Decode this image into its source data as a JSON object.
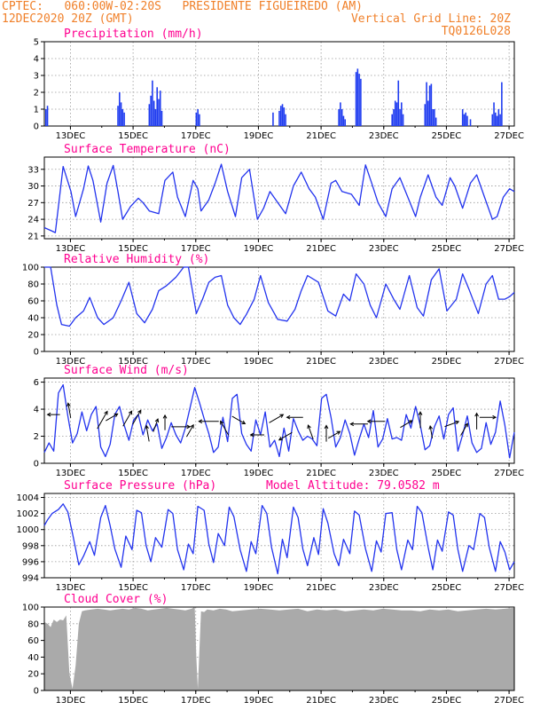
{
  "header": {
    "line1": "CPTEC:   060:00W-02:20S   PRESIDENTE FIGUEIREDO (AM)",
    "date": "12DEC2020 20Z (GMT)",
    "vgrid": "Vertical Grid Line: 20Z",
    "code": "TQ0126L028",
    "color": "#f0802a"
  },
  "colors": {
    "line": "#2233ee",
    "bar": "#1f3cf0",
    "cloud": "#aaaaaa",
    "title": "#ff0090",
    "arrow": "#000000"
  },
  "x_range": {
    "start": "12DEC 20Z",
    "end": "27DEC 20Z",
    "x_min": 0,
    "x_max": 15,
    "unit": "days"
  },
  "x_ticks": [
    {
      "x": 0.833,
      "label": "13DEC"
    },
    {
      "x": 2.833,
      "label": "15DEC"
    },
    {
      "x": 4.833,
      "label": "17DEC"
    },
    {
      "x": 6.833,
      "label": "19DEC"
    },
    {
      "x": 8.833,
      "label": "21DEC"
    },
    {
      "x": 10.833,
      "label": "23DEC"
    },
    {
      "x": 12.833,
      "label": "25DEC"
    },
    {
      "x": 14.833,
      "label": "27DEC"
    }
  ],
  "chart_data": [
    {
      "id": "precip",
      "type": "bar",
      "title": "Precipitation (mm/h)",
      "ylim": [
        0,
        5
      ],
      "yticks": [
        0,
        1,
        2,
        3,
        4,
        5
      ],
      "x": [
        0.05,
        0.1,
        2.35,
        2.4,
        2.45,
        2.5,
        2.55,
        3.35,
        3.4,
        3.45,
        3.5,
        3.55,
        3.6,
        3.65,
        3.7,
        3.75,
        4.85,
        4.9,
        4.95,
        7.3,
        7.5,
        7.55,
        7.6,
        7.65,
        7.7,
        9.4,
        9.45,
        9.5,
        9.55,
        9.6,
        9.95,
        10.0,
        10.05,
        10.1,
        11.1,
        11.15,
        11.2,
        11.25,
        11.3,
        11.35,
        11.4,
        11.45,
        12.15,
        12.2,
        12.25,
        12.3,
        12.35,
        12.4,
        12.45,
        12.5,
        13.35,
        13.4,
        13.45,
        13.5,
        13.6,
        14.3,
        14.35,
        14.4,
        14.45,
        14.5,
        14.55,
        14.6
      ],
      "values": [
        1.0,
        1.2,
        1.2,
        2.0,
        1.4,
        1.0,
        0.8,
        1.3,
        1.8,
        2.7,
        1.5,
        1.0,
        2.3,
        1.6,
        2.1,
        0.9,
        0.8,
        1.0,
        0.7,
        0.8,
        0.9,
        1.2,
        1.3,
        1.1,
        0.7,
        1.0,
        1.4,
        1.0,
        0.6,
        0.4,
        3.2,
        3.4,
        3.1,
        2.8,
        0.7,
        1.0,
        1.5,
        1.4,
        2.7,
        1.0,
        1.4,
        0.7,
        1.3,
        2.6,
        1.5,
        2.4,
        2.5,
        1.0,
        1.0,
        0.5,
        1.0,
        0.7,
        0.8,
        0.6,
        0.4,
        0.7,
        1.4,
        0.8,
        0.6,
        1.0,
        0.7,
        2.6
      ]
    },
    {
      "id": "temp",
      "type": "line",
      "title": "Surface Temperature (nC)",
      "ylim": [
        20.5,
        35.2
      ],
      "yticks": [
        21,
        24,
        27,
        30,
        33
      ],
      "x": [
        0,
        0.2,
        0.35,
        0.6,
        0.85,
        1.0,
        1.25,
        1.4,
        1.55,
        1.8,
        2.0,
        2.2,
        2.35,
        2.5,
        2.75,
        3.0,
        3.15,
        3.35,
        3.65,
        3.85,
        4.1,
        4.25,
        4.5,
        4.75,
        4.9,
        5.0,
        5.25,
        5.45,
        5.65,
        5.85,
        6.1,
        6.3,
        6.55,
        6.8,
        7.0,
        7.2,
        7.45,
        7.7,
        7.95,
        8.2,
        8.45,
        8.65,
        8.9,
        9.15,
        9.3,
        9.5,
        9.8,
        10.05,
        10.25,
        10.45,
        10.65,
        10.9,
        11.1,
        11.35,
        11.6,
        11.85,
        12.0,
        12.25,
        12.5,
        12.7,
        12.95,
        13.1,
        13.35,
        13.6,
        13.8,
        14.05,
        14.3,
        14.45,
        14.65,
        14.85,
        15.0
      ],
      "values": [
        22.5,
        22.0,
        21.6,
        33.5,
        29.0,
        24.5,
        29.5,
        33.6,
        31.0,
        23.5,
        30.5,
        33.7,
        29.0,
        24.0,
        26.3,
        27.8,
        27.0,
        25.5,
        25.0,
        31.0,
        32.5,
        28.0,
        24.5,
        31.0,
        29.5,
        25.5,
        27.5,
        30.5,
        33.9,
        29.0,
        24.5,
        31.5,
        33.0,
        24.0,
        26.0,
        29.0,
        27.0,
        25.0,
        30.0,
        32.5,
        29.5,
        28.0,
        24.0,
        30.5,
        31.0,
        29.0,
        28.5,
        26.5,
        33.8,
        30.5,
        27.0,
        24.5,
        29.5,
        31.5,
        28.0,
        24.5,
        28.0,
        32.0,
        28.0,
        26.5,
        31.5,
        30.0,
        26.0,
        30.5,
        32.0,
        28.0,
        24.0,
        24.5,
        28.0,
        29.5,
        29.0
      ]
    },
    {
      "id": "rh",
      "type": "line",
      "title": "Relative Humidity (%)",
      "ylim": [
        0,
        100
      ],
      "yticks": [
        0,
        20,
        40,
        60,
        80,
        100
      ],
      "x": [
        0,
        0.2,
        0.4,
        0.55,
        0.8,
        1.0,
        1.25,
        1.45,
        1.7,
        1.9,
        2.2,
        2.45,
        2.7,
        2.95,
        3.2,
        3.45,
        3.65,
        3.9,
        4.2,
        4.45,
        4.6,
        4.85,
        5.05,
        5.25,
        5.45,
        5.65,
        5.85,
        6.05,
        6.25,
        6.45,
        6.7,
        6.9,
        7.15,
        7.45,
        7.75,
        8.0,
        8.2,
        8.4,
        8.75,
        9.05,
        9.3,
        9.55,
        9.75,
        9.95,
        10.2,
        10.4,
        10.6,
        10.9,
        11.15,
        11.35,
        11.65,
        11.9,
        12.1,
        12.35,
        12.6,
        12.85,
        13.15,
        13.35,
        13.55,
        13.85,
        14.1,
        14.3,
        14.5,
        14.7,
        14.85,
        15.0
      ],
      "values": [
        100,
        100,
        55,
        32,
        30,
        40,
        48,
        64,
        40,
        32,
        40,
        60,
        82,
        45,
        34,
        50,
        72,
        78,
        88,
        100,
        100,
        45,
        62,
        82,
        88,
        90,
        55,
        40,
        32,
        44,
        62,
        90,
        58,
        38,
        36,
        50,
        72,
        90,
        82,
        48,
        42,
        68,
        60,
        92,
        80,
        55,
        40,
        80,
        62,
        50,
        90,
        52,
        42,
        85,
        98,
        48,
        62,
        92,
        74,
        45,
        80,
        90,
        62,
        62,
        65,
        70
      ]
    },
    {
      "id": "wind",
      "type": "line",
      "title": "Surface Wind (m/s)",
      "ylim": [
        0,
        6.3
      ],
      "yticks": [
        0,
        2,
        4,
        6
      ],
      "x": [
        0,
        0.15,
        0.3,
        0.45,
        0.6,
        0.75,
        0.9,
        1.05,
        1.2,
        1.35,
        1.5,
        1.65,
        1.8,
        1.95,
        2.1,
        2.25,
        2.4,
        2.55,
        2.7,
        2.85,
        3.0,
        3.15,
        3.3,
        3.45,
        3.6,
        3.75,
        3.9,
        4.05,
        4.2,
        4.35,
        4.5,
        4.65,
        4.8,
        4.95,
        5.1,
        5.25,
        5.4,
        5.55,
        5.7,
        5.85,
        6.0,
        6.15,
        6.3,
        6.45,
        6.6,
        6.75,
        6.9,
        7.05,
        7.2,
        7.35,
        7.5,
        7.65,
        7.8,
        7.95,
        8.1,
        8.25,
        8.4,
        8.55,
        8.7,
        8.85,
        9.0,
        9.15,
        9.3,
        9.45,
        9.6,
        9.75,
        9.9,
        10.05,
        10.2,
        10.35,
        10.5,
        10.65,
        10.8,
        10.95,
        11.1,
        11.25,
        11.4,
        11.55,
        11.7,
        11.85,
        12.0,
        12.15,
        12.3,
        12.45,
        12.6,
        12.75,
        12.9,
        13.05,
        13.2,
        13.35,
        13.5,
        13.65,
        13.8,
        13.95,
        14.1,
        14.25,
        14.4,
        14.55,
        14.7,
        14.85,
        15.0
      ],
      "values": [
        0.8,
        1.5,
        0.9,
        5.2,
        5.8,
        3.5,
        1.5,
        2.2,
        3.8,
        2.4,
        3.6,
        4.2,
        1.2,
        0.5,
        1.4,
        3.6,
        4.2,
        2.8,
        1.7,
        3.2,
        3.6,
        2.1,
        3.2,
        2.4,
        2.9,
        1.1,
        1.9,
        3.0,
        2.1,
        1.5,
        2.6,
        4.1,
        5.6,
        4.5,
        3.3,
        2.2,
        0.8,
        1.2,
        3.4,
        1.6,
        4.8,
        5.1,
        2.2,
        1.4,
        0.9,
        3.2,
        2.1,
        3.8,
        1.2,
        1.7,
        0.5,
        2.6,
        0.9,
        3.3,
        2.4,
        1.7,
        2.0,
        1.8,
        1.3,
        4.8,
        5.1,
        3.4,
        1.2,
        1.9,
        3.2,
        2.2,
        0.6,
        1.8,
        2.9,
        1.9,
        3.9,
        1.2,
        1.8,
        3.3,
        1.8,
        1.9,
        1.7,
        3.6,
        2.6,
        4.2,
        2.8,
        1.0,
        1.3,
        2.7,
        3.5,
        1.8,
        3.6,
        4.1,
        0.9,
        2.1,
        3.5,
        1.5,
        0.8,
        1.1,
        3.0,
        1.4,
        2.3,
        4.6,
        2.8,
        0.4,
        2.3
      ]
    },
    {
      "id": "wind_arrows",
      "type": "vector",
      "title": "Surface Wind direction arrows",
      "x": [
        0.3,
        0.8,
        1.85,
        2.15,
        2.65,
        2.95,
        3.3,
        3.55,
        3.85,
        4.35,
        4.65,
        5.25,
        5.75,
        6.2,
        6.8,
        7.4,
        7.7,
        8.0,
        8.5,
        9.0,
        9.25,
        10.05,
        10.6,
        11.55,
        12.0,
        12.35,
        13.0,
        13.4,
        13.8,
        14.15
      ],
      "y": [
        3.6,
        3.9,
        3.2,
        3.4,
        3.3,
        3.4,
        2.2,
        2.8,
        3.0,
        2.7,
        2.4,
        3.1,
        2.6,
        3.2,
        2.1,
        3.3,
        2.0,
        3.4,
        2.3,
        2.2,
        2.1,
        2.9,
        3.1,
        2.9,
        3.2,
        2.3,
        2.9,
        2.5,
        3.1,
        3.4
      ],
      "dir_deg": [
        180,
        100,
        60,
        30,
        60,
        60,
        100,
        70,
        90,
        0,
        60,
        180,
        120,
        330,
        180,
        30,
        210,
        180,
        110,
        90,
        30,
        180,
        180,
        30,
        90,
        100,
        20,
        60,
        90,
        0
      ],
      "speed": [
        1.0,
        1.2,
        1.6,
        1.1,
        1.4,
        1.3,
        1.3,
        1.1,
        1.2,
        1.5,
        1.1,
        1.6,
        1.3,
        1.2,
        1.1,
        1.3,
        1.2,
        1.3,
        1.2,
        1.3,
        1.1,
        1.4,
        1.4,
        1.1,
        1.3,
        1.0,
        1.2,
        1.1,
        1.3,
        1.3
      ]
    },
    {
      "id": "pressure",
      "type": "line",
      "title": "Surface Pressure (hPa)",
      "annotation": "Model Altitude: 79.0582 m",
      "ylim": [
        994,
        1004.5
      ],
      "yticks": [
        994,
        996,
        998,
        1000,
        1002,
        1004
      ],
      "x": [
        0,
        0.1,
        0.25,
        0.45,
        0.6,
        0.75,
        0.9,
        1.1,
        1.25,
        1.45,
        1.6,
        1.8,
        1.95,
        2.1,
        2.25,
        2.45,
        2.6,
        2.8,
        2.95,
        3.1,
        3.25,
        3.4,
        3.55,
        3.75,
        3.95,
        4.1,
        4.25,
        4.45,
        4.6,
        4.75,
        4.9,
        5.1,
        5.25,
        5.4,
        5.55,
        5.75,
        5.9,
        6.05,
        6.25,
        6.45,
        6.6,
        6.75,
        6.95,
        7.1,
        7.25,
        7.45,
        7.6,
        7.75,
        7.95,
        8.1,
        8.25,
        8.4,
        8.6,
        8.75,
        8.9,
        9.05,
        9.25,
        9.4,
        9.55,
        9.75,
        9.9,
        10.05,
        10.25,
        10.45,
        10.6,
        10.75,
        10.9,
        11.1,
        11.25,
        11.4,
        11.6,
        11.75,
        11.9,
        12.05,
        12.25,
        12.4,
        12.55,
        12.7,
        12.9,
        13.05,
        13.2,
        13.35,
        13.55,
        13.7,
        13.9,
        14.05,
        14.2,
        14.4,
        14.55,
        14.7,
        14.85,
        15.0
      ],
      "values": [
        1000.5,
        1001.2,
        1002.0,
        1002.5,
        1003.2,
        1002.2,
        999.5,
        995.6,
        996.7,
        998.5,
        996.8,
        1001.5,
        1003.0,
        1000.5,
        997.6,
        995.3,
        999.2,
        997.5,
        1002.4,
        1002.1,
        998.0,
        996.0,
        999.0,
        997.8,
        1002.5,
        1002.0,
        997.5,
        995.0,
        998.2,
        997.0,
        1002.9,
        1002.4,
        998.2,
        995.9,
        999.5,
        998.0,
        1002.8,
        1001.6,
        997.5,
        994.8,
        998.5,
        997.0,
        1003.0,
        1002.0,
        997.8,
        994.5,
        998.8,
        996.5,
        1002.8,
        1001.5,
        997.6,
        995.5,
        999.0,
        996.9,
        1002.6,
        1000.8,
        997.0,
        995.5,
        998.8,
        997.0,
        1002.3,
        1001.8,
        997.6,
        994.8,
        998.6,
        997.2,
        1002.0,
        1002.1,
        997.5,
        995.0,
        998.7,
        997.5,
        1002.9,
        1002.1,
        997.8,
        995.0,
        998.7,
        997.3,
        1002.2,
        1001.8,
        997.5,
        994.8,
        998.0,
        997.5,
        1002.0,
        1001.5,
        997.8,
        994.8,
        998.5,
        997.2,
        995.0,
        996.0
      ]
    },
    {
      "id": "cloud",
      "type": "area",
      "title": "Cloud Cover (%)",
      "ylim": [
        0,
        100
      ],
      "yticks": [
        0,
        20,
        40,
        60,
        80,
        100
      ],
      "x": [
        0,
        0.1,
        0.2,
        0.3,
        0.4,
        0.5,
        0.6,
        0.7,
        0.8,
        0.9,
        1.0,
        1.1,
        1.2,
        1.3,
        1.5,
        1.7,
        1.9,
        2.1,
        2.3,
        2.5,
        2.7,
        2.9,
        3.1,
        3.3,
        3.5,
        3.7,
        3.9,
        4.1,
        4.3,
        4.5,
        4.7,
        4.8,
        4.85,
        4.9,
        5.0,
        5.1,
        5.2,
        5.4,
        5.6,
        5.8,
        6.0,
        6.3,
        6.6,
        6.9,
        7.2,
        7.5,
        7.8,
        8.1,
        8.4,
        8.7,
        9.0,
        9.3,
        9.6,
        9.9,
        10.2,
        10.5,
        10.8,
        11.1,
        11.4,
        11.7,
        12.0,
        12.3,
        12.6,
        12.9,
        13.2,
        13.5,
        13.8,
        14.1,
        14.4,
        14.7,
        15.0
      ],
      "values": [
        82,
        80,
        76,
        85,
        82,
        85,
        84,
        90,
        20,
        2,
        30,
        80,
        95,
        96,
        97,
        98,
        97,
        96,
        97,
        98,
        97,
        99,
        98,
        96,
        97,
        98,
        99,
        98,
        97,
        96,
        98,
        100,
        40,
        2,
        95,
        94,
        97,
        96,
        98,
        97,
        95,
        96,
        97,
        98,
        97,
        96,
        97,
        98,
        95,
        97,
        96,
        97,
        95,
        96,
        97,
        96,
        98,
        97,
        96,
        96,
        95,
        97,
        96,
        97,
        95,
        96,
        97,
        98,
        97,
        98,
        99
      ]
    }
  ]
}
